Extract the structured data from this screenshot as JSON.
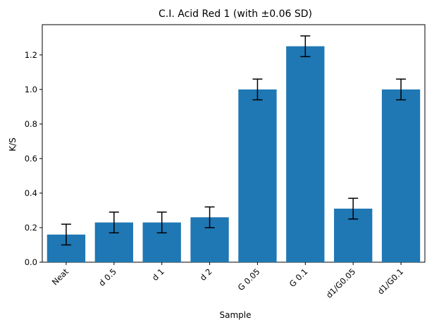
{
  "chart_data": {
    "type": "bar",
    "title": "C.I. Acid Red 1 (with ±0.06 SD)",
    "xlabel": "Sample",
    "ylabel": "K/S",
    "categories": [
      "Neat",
      "d 0.5",
      "d 1",
      "d 2",
      "G 0.05",
      "G 0.1",
      "d1/G0.05",
      "d1/G0.1"
    ],
    "values": [
      0.16,
      0.23,
      0.23,
      0.26,
      1.0,
      1.25,
      0.31,
      1.0
    ],
    "error": 0.06,
    "ylim": [
      0,
      1.375
    ],
    "yticks": [
      0.0,
      0.2,
      0.4,
      0.6,
      0.8,
      1.0,
      1.2
    ],
    "ytick_labels": [
      "0.0",
      "0.2",
      "0.4",
      "0.6",
      "0.8",
      "1.0",
      "1.2"
    ],
    "bar_color": "#1f77b4",
    "error_color": "#000000",
    "grid": false,
    "legend": false
  }
}
